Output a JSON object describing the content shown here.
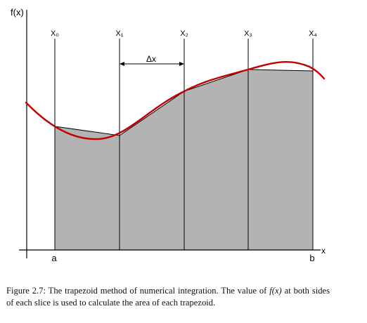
{
  "figure": {
    "y_axis_label": "f(x)",
    "x_axis_label": "x",
    "slice_labels": [
      "X₀",
      "X₁",
      "X₂",
      "X₃",
      "X₄"
    ],
    "bound_labels": {
      "a": "a",
      "b": "b"
    },
    "delta_label": "Δx",
    "colors": {
      "curve": "#c00000",
      "trapezoid_fill": "#b3b3b3",
      "lines": "#000000"
    }
  },
  "caption": {
    "label": "Figure 2.7:",
    "text_part1": "The trapezoid method of numerical integration. The value of",
    "fx": "f(x)",
    "text_part2": "at both sides of each slice is used to calculate the area of each trapezoid."
  }
}
